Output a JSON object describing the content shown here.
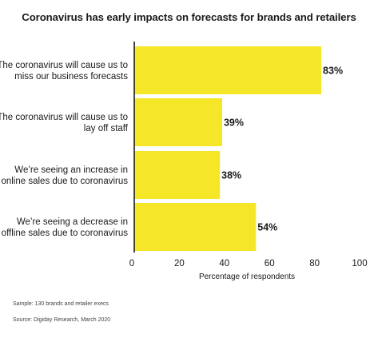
{
  "chart_data": {
    "type": "bar",
    "orientation": "horizontal",
    "title": "Coronavirus has early impacts on forecasts for brands and retailers",
    "categories": [
      [
        "The coronavirus will cause us to",
        "miss our business forecasts"
      ],
      [
        "The coronavirus will cause us to",
        "lay off staff"
      ],
      [
        "We’re seeing an increase in",
        "online sales due to coronavirus"
      ],
      [
        "We’re seeing a decrease in",
        "offline sales due to coronavirus"
      ]
    ],
    "values": [
      83,
      39,
      38,
      54
    ],
    "value_labels": [
      "83%",
      "39%",
      "38%",
      "54%"
    ],
    "xlabel": "Percentage of respondents",
    "xlim": [
      0,
      100
    ],
    "xticks": [
      "0",
      "20",
      "40",
      "60",
      "80",
      "100"
    ],
    "bar_color": "#f6e628",
    "grid": false,
    "legend": "none"
  },
  "footnotes": {
    "sample": "Sample: 130 brands and retailer execs",
    "source": "Source: Digiday Research, March 2020"
  }
}
